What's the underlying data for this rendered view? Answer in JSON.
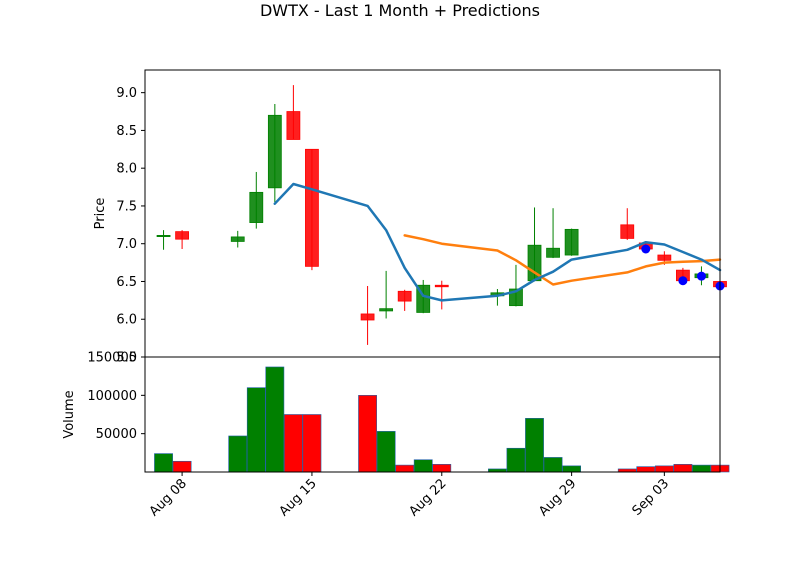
{
  "chart_data": {
    "type": "candlestick",
    "title": "DWTX - Last 1 Month + Predictions",
    "colors": {
      "up": "#008000",
      "down": "#ff0000",
      "ma_short": "#1f77b4",
      "ma_long": "#ff7f0e",
      "prediction": "#0000ff"
    },
    "price_panel": {
      "ylabel": "Price",
      "ylim": [
        5.5,
        9.3
      ],
      "yticks": [
        "5.5",
        "6.0",
        "6.5",
        "7.0",
        "7.5",
        "8.0",
        "8.5",
        "9.0"
      ]
    },
    "volume_panel": {
      "ylabel": "Volume",
      "ylim": [
        0,
        150000
      ],
      "yticks": [
        "50000",
        "100000",
        "150000"
      ]
    },
    "xlim": [
      "2025-08-06",
      "2025-09-06"
    ],
    "xticks": [
      {
        "date": "2025-08-08",
        "label": "Aug 08"
      },
      {
        "date": "2025-08-15",
        "label": "Aug 15"
      },
      {
        "date": "2025-08-22",
        "label": "Aug 22"
      },
      {
        "date": "2025-08-29",
        "label": "Aug 29"
      },
      {
        "date": "2025-09-03",
        "label": "Sep 03"
      }
    ],
    "candles": [
      {
        "date": "2025-08-07",
        "open": 7.1,
        "high": 7.18,
        "low": 6.92,
        "close": 7.11,
        "volume": 24000
      },
      {
        "date": "2025-08-08",
        "open": 7.16,
        "high": 7.18,
        "low": 6.93,
        "close": 7.06,
        "volume": 14000
      },
      {
        "date": "2025-08-11",
        "open": 7.03,
        "high": 7.17,
        "low": 6.95,
        "close": 7.09,
        "volume": 47000
      },
      {
        "date": "2025-08-12",
        "open": 7.28,
        "high": 7.95,
        "low": 7.2,
        "close": 7.68,
        "volume": 110000
      },
      {
        "date": "2025-08-13",
        "open": 7.74,
        "high": 8.85,
        "low": 7.55,
        "close": 8.7,
        "volume": 137000
      },
      {
        "date": "2025-08-14",
        "open": 8.75,
        "high": 9.1,
        "low": 8.38,
        "close": 8.38,
        "volume": 75000
      },
      {
        "date": "2025-08-15",
        "open": 8.25,
        "high": 8.25,
        "low": 6.65,
        "close": 6.7,
        "volume": 75000
      },
      {
        "date": "2025-08-18",
        "open": 6.07,
        "high": 6.44,
        "low": 5.66,
        "close": 5.99,
        "volume": 100000
      },
      {
        "date": "2025-08-19",
        "open": 6.11,
        "high": 6.64,
        "low": 6.01,
        "close": 6.14,
        "volume": 53000
      },
      {
        "date": "2025-08-20",
        "open": 6.37,
        "high": 6.39,
        "low": 6.11,
        "close": 6.24,
        "volume": 9000
      },
      {
        "date": "2025-08-21",
        "open": 6.09,
        "high": 6.52,
        "low": 6.08,
        "close": 6.45,
        "volume": 16000
      },
      {
        "date": "2025-08-22",
        "open": 6.45,
        "high": 6.51,
        "low": 6.13,
        "close": 6.43,
        "volume": 10000
      },
      {
        "date": "2025-08-25",
        "open": 6.31,
        "high": 6.4,
        "low": 6.18,
        "close": 6.35,
        "volume": 4000
      },
      {
        "date": "2025-08-26",
        "open": 6.18,
        "high": 6.72,
        "low": 6.17,
        "close": 6.4,
        "volume": 31000
      },
      {
        "date": "2025-08-27",
        "open": 6.51,
        "high": 7.48,
        "low": 6.5,
        "close": 6.98,
        "volume": 70000
      },
      {
        "date": "2025-08-28",
        "open": 6.82,
        "high": 7.47,
        "low": 6.81,
        "close": 6.94,
        "volume": 19000
      },
      {
        "date": "2025-08-29",
        "open": 6.85,
        "high": 7.2,
        "low": 6.84,
        "close": 7.19,
        "volume": 8000
      },
      {
        "date": "2025-09-01",
        "open": 7.25,
        "high": 7.47,
        "low": 7.05,
        "close": 7.07,
        "volume": 4000
      },
      {
        "date": "2025-09-02",
        "open": 7.01,
        "high": 7.02,
        "low": 6.9,
        "close": 6.93,
        "volume": 7000
      },
      {
        "date": "2025-09-03",
        "open": 6.85,
        "high": 6.9,
        "low": 6.72,
        "close": 6.78,
        "volume": 8000
      },
      {
        "date": "2025-09-04",
        "open": 6.65,
        "high": 6.68,
        "low": 6.48,
        "close": 6.51,
        "volume": 10000
      },
      {
        "date": "2025-09-05",
        "open": 6.55,
        "high": 6.7,
        "low": 6.45,
        "close": 6.6,
        "volume": 9000
      },
      {
        "date": "2025-09-06",
        "open": 6.5,
        "high": 6.58,
        "low": 6.4,
        "close": 6.43,
        "volume": 9000
      }
    ],
    "ma_short": [
      {
        "date": "2025-08-13",
        "value": 7.53
      },
      {
        "date": "2025-08-14",
        "value": 7.79
      },
      {
        "date": "2025-08-15",
        "value": 7.72
      },
      {
        "date": "2025-08-18",
        "value": 7.5
      },
      {
        "date": "2025-08-19",
        "value": 7.18
      },
      {
        "date": "2025-08-20",
        "value": 6.68
      },
      {
        "date": "2025-08-21",
        "value": 6.31
      },
      {
        "date": "2025-08-22",
        "value": 6.25
      },
      {
        "date": "2025-08-25",
        "value": 6.31
      },
      {
        "date": "2025-08-26",
        "value": 6.37
      },
      {
        "date": "2025-08-27",
        "value": 6.52
      },
      {
        "date": "2025-08-28",
        "value": 6.63
      },
      {
        "date": "2025-08-29",
        "value": 6.79
      },
      {
        "date": "2025-09-01",
        "value": 6.92
      },
      {
        "date": "2025-09-02",
        "value": 7.02
      },
      {
        "date": "2025-09-03",
        "value": 6.99
      },
      {
        "date": "2025-09-04",
        "value": 6.89
      },
      {
        "date": "2025-09-05",
        "value": 6.79
      },
      {
        "date": "2025-09-06",
        "value": 6.65
      }
    ],
    "ma_long": [
      {
        "date": "2025-08-20",
        "value": 7.11
      },
      {
        "date": "2025-08-21",
        "value": 7.06
      },
      {
        "date": "2025-08-22",
        "value": 7.0
      },
      {
        "date": "2025-08-25",
        "value": 6.91
      },
      {
        "date": "2025-08-26",
        "value": 6.78
      },
      {
        "date": "2025-08-27",
        "value": 6.62
      },
      {
        "date": "2025-08-28",
        "value": 6.46
      },
      {
        "date": "2025-08-29",
        "value": 6.51
      },
      {
        "date": "2025-09-01",
        "value": 6.62
      },
      {
        "date": "2025-09-02",
        "value": 6.7
      },
      {
        "date": "2025-09-03",
        "value": 6.75
      },
      {
        "date": "2025-09-04",
        "value": 6.76
      },
      {
        "date": "2025-09-05",
        "value": 6.77
      },
      {
        "date": "2025-09-06",
        "value": 6.79
      }
    ],
    "predictions": [
      {
        "date": "2025-09-02",
        "value": 6.93
      },
      {
        "date": "2025-09-04",
        "value": 6.51
      },
      {
        "date": "2025-09-05",
        "value": 6.57
      },
      {
        "date": "2025-09-06",
        "value": 6.44
      }
    ]
  }
}
